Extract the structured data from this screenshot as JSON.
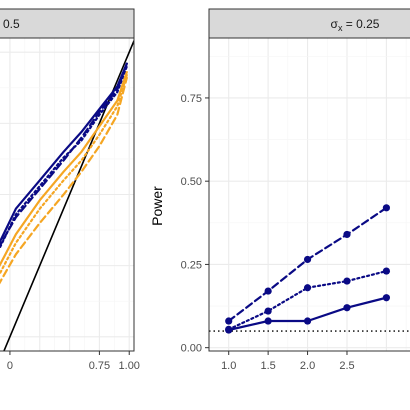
{
  "chart_data": [
    {
      "type": "line",
      "strip_label": "0.5",
      "xlim": [
        -0.1,
        1.04
      ],
      "ylim": [
        -0.05,
        1.05
      ],
      "x_ticks": [
        0.0,
        0.75,
        1.0
      ],
      "x_tick_labels": [
        "0",
        "0.75",
        "1.00"
      ],
      "grid": true,
      "series": [
        {
          "color": "#000000",
          "dash": "solid",
          "x": [
            -0.1,
            1.04
          ],
          "y": [
            -0.1,
            1.04
          ]
        },
        {
          "color": "#0a0a85",
          "dash": "solid",
          "x": [
            -0.1,
            0.05,
            0.25,
            0.45,
            0.6,
            0.75,
            0.9,
            0.98
          ],
          "y": [
            0.32,
            0.45,
            0.55,
            0.65,
            0.72,
            0.8,
            0.88,
            0.96
          ]
        },
        {
          "color": "#0a0a85",
          "dash": "dotted",
          "x": [
            -0.1,
            0.05,
            0.25,
            0.45,
            0.6,
            0.75,
            0.9,
            0.98
          ],
          "y": [
            0.3,
            0.43,
            0.53,
            0.63,
            0.69,
            0.78,
            0.86,
            0.95
          ]
        },
        {
          "color": "#0a0a85",
          "dash": "dashed",
          "x": [
            -0.1,
            0.05,
            0.25,
            0.45,
            0.6,
            0.75,
            0.9,
            0.98
          ],
          "y": [
            0.31,
            0.42,
            0.52,
            0.62,
            0.7,
            0.79,
            0.87,
            0.96
          ]
        },
        {
          "color": "#f5a623",
          "dash": "solid",
          "x": [
            -0.1,
            0.05,
            0.25,
            0.45,
            0.6,
            0.75,
            0.9,
            0.98
          ],
          "y": [
            0.24,
            0.36,
            0.48,
            0.58,
            0.65,
            0.74,
            0.83,
            0.93
          ]
        },
        {
          "color": "#f5a623",
          "dash": "dotted",
          "x": [
            -0.1,
            0.05,
            0.25,
            0.45,
            0.6,
            0.75,
            0.9,
            0.98
          ],
          "y": [
            0.21,
            0.33,
            0.45,
            0.55,
            0.62,
            0.71,
            0.81,
            0.92
          ]
        },
        {
          "color": "#f5a623",
          "dash": "dashed",
          "x": [
            -0.1,
            0.05,
            0.25,
            0.45,
            0.6,
            0.75,
            0.9,
            0.98
          ],
          "y": [
            0.18,
            0.29,
            0.4,
            0.5,
            0.58,
            0.67,
            0.78,
            0.91
          ]
        }
      ]
    },
    {
      "type": "line",
      "strip_label": "σ",
      "strip_subscript": "x",
      "strip_suffix": " = 0.25",
      "ylabel": "Power",
      "xlim": [
        0.75,
        3.35
      ],
      "ylim": [
        -0.01,
        0.93
      ],
      "x_ticks": [
        1.0,
        1.5,
        2.0,
        2.5
      ],
      "x_tick_labels": [
        "1.0",
        "1.5",
        "2.0",
        "2.5"
      ],
      "y_ticks": [
        0.0,
        0.25,
        0.5,
        0.75
      ],
      "y_tick_labels": [
        "0.00",
        "0.25",
        "0.50",
        "0.75"
      ],
      "grid": true,
      "reference_line": {
        "y": 0.05,
        "style": "dotted",
        "color": "#000000"
      },
      "series": [
        {
          "color": "#0a0a85",
          "dash": "solid",
          "x": [
            1.0,
            1.5,
            2.0,
            2.5,
            3.0
          ],
          "y": [
            0.053,
            0.08,
            0.08,
            0.12,
            0.15
          ]
        },
        {
          "color": "#0a0a85",
          "dash": "dotted",
          "x": [
            1.0,
            1.5,
            2.0,
            2.5,
            3.0
          ],
          "y": [
            0.055,
            0.11,
            0.18,
            0.2,
            0.23
          ]
        },
        {
          "color": "#0a0a85",
          "dash": "dashed",
          "x": [
            1.0,
            1.5,
            2.0,
            2.5,
            3.0
          ],
          "y": [
            0.08,
            0.17,
            0.265,
            0.34,
            0.42
          ]
        }
      ]
    }
  ],
  "colors": {
    "panel_bg": "#ffffff",
    "strip_bg": "#d9d9d9",
    "grid_major": "#ebebeb",
    "grid_minor": "#f5f5f5",
    "panel_border": "#333333"
  }
}
